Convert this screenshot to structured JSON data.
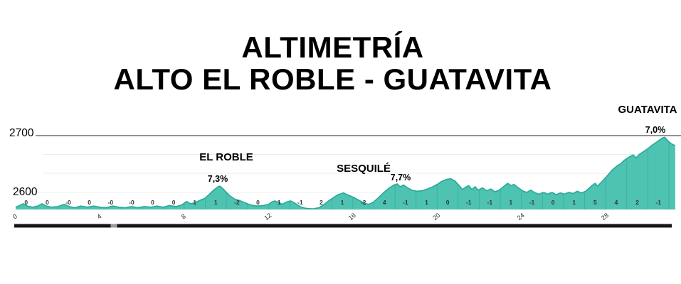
{
  "title": {
    "line1": "ALTIMETRÍA",
    "line2": "ALTO EL ROBLE - GUATAVITA"
  },
  "chart_data": {
    "type": "area",
    "title": "ALTIMETRÍA",
    "subtitle": "ALTO EL ROBLE - GUATAVITA",
    "x_unit": "km",
    "y_unit": "m",
    "xlim": [
      0,
      31.3
    ],
    "ylim": [
      2570,
      2700
    ],
    "x_ticks": [
      0,
      4,
      8,
      12,
      16,
      20,
      24,
      28
    ],
    "y_ticks": [
      2700,
      2600
    ],
    "grid": "horizontal-faint",
    "legend": "none",
    "profile_points": [
      [
        0,
        2574
      ],
      [
        0.2,
        2577
      ],
      [
        0.35,
        2580
      ],
      [
        0.55,
        2576
      ],
      [
        0.8,
        2574
      ],
      [
        1.05,
        2576
      ],
      [
        1.25,
        2580
      ],
      [
        1.45,
        2576
      ],
      [
        1.7,
        2574
      ],
      [
        2,
        2575
      ],
      [
        2.3,
        2579
      ],
      [
        2.55,
        2575
      ],
      [
        2.8,
        2573
      ],
      [
        3.1,
        2576
      ],
      [
        3.4,
        2574
      ],
      [
        3.7,
        2576
      ],
      [
        4,
        2574
      ],
      [
        4.3,
        2573
      ],
      [
        4.6,
        2576
      ],
      [
        4.9,
        2574
      ],
      [
        5.2,
        2573
      ],
      [
        5.5,
        2575
      ],
      [
        5.8,
        2573
      ],
      [
        6.1,
        2575
      ],
      [
        6.4,
        2574
      ],
      [
        6.7,
        2576
      ],
      [
        7,
        2574
      ],
      [
        7.3,
        2577
      ],
      [
        7.6,
        2575
      ],
      [
        7.9,
        2578
      ],
      [
        8.1,
        2584
      ],
      [
        8.3,
        2580
      ],
      [
        8.5,
        2582
      ],
      [
        8.75,
        2586
      ],
      [
        9,
        2590
      ],
      [
        9.2,
        2597
      ],
      [
        9.4,
        2604
      ],
      [
        9.6,
        2610
      ],
      [
        9.7,
        2611
      ],
      [
        9.85,
        2606
      ],
      [
        10,
        2600
      ],
      [
        10.2,
        2593
      ],
      [
        10.4,
        2588
      ],
      [
        10.6,
        2586
      ],
      [
        10.8,
        2583
      ],
      [
        11,
        2580
      ],
      [
        11.25,
        2577
      ],
      [
        11.5,
        2576
      ],
      [
        11.75,
        2577
      ],
      [
        12,
        2579
      ],
      [
        12.15,
        2583
      ],
      [
        12.3,
        2585
      ],
      [
        12.5,
        2582
      ],
      [
        12.65,
        2579
      ],
      [
        12.85,
        2583
      ],
      [
        13.05,
        2585
      ],
      [
        13.25,
        2581
      ],
      [
        13.5,
        2575
      ],
      [
        13.75,
        2572
      ],
      [
        14.1,
        2571
      ],
      [
        14.4,
        2573
      ],
      [
        14.65,
        2579
      ],
      [
        14.85,
        2585
      ],
      [
        15.05,
        2590
      ],
      [
        15.3,
        2596
      ],
      [
        15.55,
        2599
      ],
      [
        15.8,
        2595
      ],
      [
        16.05,
        2591
      ],
      [
        16.3,
        2586
      ],
      [
        16.55,
        2581
      ],
      [
        16.75,
        2579
      ],
      [
        16.95,
        2582
      ],
      [
        17.2,
        2590
      ],
      [
        17.45,
        2599
      ],
      [
        17.7,
        2607
      ],
      [
        17.95,
        2613
      ],
      [
        18.1,
        2615
      ],
      [
        18.25,
        2610
      ],
      [
        18.4,
        2613
      ],
      [
        18.6,
        2608
      ],
      [
        18.8,
        2604
      ],
      [
        19.05,
        2602
      ],
      [
        19.3,
        2603
      ],
      [
        19.55,
        2606
      ],
      [
        19.8,
        2610
      ],
      [
        20,
        2614
      ],
      [
        20.2,
        2619
      ],
      [
        20.45,
        2623
      ],
      [
        20.65,
        2624
      ],
      [
        20.85,
        2620
      ],
      [
        21.05,
        2612
      ],
      [
        21.2,
        2605
      ],
      [
        21.35,
        2609
      ],
      [
        21.5,
        2612
      ],
      [
        21.65,
        2605
      ],
      [
        21.8,
        2610
      ],
      [
        21.95,
        2604
      ],
      [
        22.15,
        2608
      ],
      [
        22.35,
        2603
      ],
      [
        22.55,
        2606
      ],
      [
        22.75,
        2601
      ],
      [
        22.95,
        2604
      ],
      [
        23.15,
        2610
      ],
      [
        23.35,
        2616
      ],
      [
        23.5,
        2612
      ],
      [
        23.65,
        2614
      ],
      [
        23.85,
        2608
      ],
      [
        24.05,
        2603
      ],
      [
        24.25,
        2600
      ],
      [
        24.45,
        2604
      ],
      [
        24.65,
        2599
      ],
      [
        24.85,
        2597
      ],
      [
        25.05,
        2600
      ],
      [
        25.25,
        2597
      ],
      [
        25.45,
        2600
      ],
      [
        25.65,
        2596
      ],
      [
        25.85,
        2599
      ],
      [
        26.05,
        2597
      ],
      [
        26.25,
        2600
      ],
      [
        26.45,
        2598
      ],
      [
        26.65,
        2602
      ],
      [
        26.85,
        2599
      ],
      [
        27.05,
        2602
      ],
      [
        27.2,
        2607
      ],
      [
        27.35,
        2612
      ],
      [
        27.5,
        2616
      ],
      [
        27.62,
        2611
      ],
      [
        27.8,
        2618
      ],
      [
        28,
        2626
      ],
      [
        28.3,
        2639
      ],
      [
        28.55,
        2647
      ],
      [
        28.7,
        2650
      ],
      [
        28.9,
        2657
      ],
      [
        29.1,
        2662
      ],
      [
        29.3,
        2666
      ],
      [
        29.45,
        2661
      ],
      [
        29.6,
        2667
      ],
      [
        29.8,
        2672
      ],
      [
        30,
        2677
      ],
      [
        30.2,
        2683
      ],
      [
        30.4,
        2688
      ],
      [
        30.55,
        2692
      ],
      [
        30.7,
        2696
      ],
      [
        30.8,
        2697
      ],
      [
        30.95,
        2691
      ],
      [
        31.1,
        2686
      ],
      [
        31.3,
        2682
      ]
    ],
    "segment_gradients": [
      "0",
      "0",
      "-0",
      "0",
      "-0",
      "-0",
      "0",
      "0",
      "1",
      "1",
      "-2",
      "0",
      "1",
      "-1",
      "2",
      "1",
      "-2",
      "4",
      "-1",
      "1",
      "0",
      "-1",
      "-1",
      "1",
      "-1",
      "0",
      "1",
      "5",
      "4",
      "2",
      "-1"
    ],
    "summits": [
      {
        "name": "EL ROBLE",
        "max_grade": "7,3%",
        "km": 9.7
      },
      {
        "name": "SESQUILÉ",
        "max_grade": "7,7%",
        "km": 18.1
      },
      {
        "name": "GUATAVITA",
        "max_grade": "7,0%",
        "km": 30.8
      }
    ],
    "colors": {
      "fill": "#4fc3b2",
      "stroke": "#2bab99",
      "separator": "#3db2a2",
      "grid_dark": "#4f4f4f",
      "grid_light": "#ececec",
      "baseline": "#e0e0e0",
      "bar": "#161616",
      "bar_notch": "#9c9c9c",
      "text": "#000000",
      "gradient_text": "#333333",
      "tick_text": "#2b2b2b"
    }
  }
}
